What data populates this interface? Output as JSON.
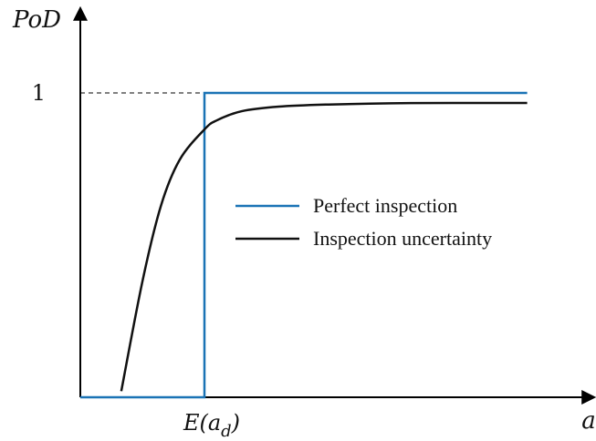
{
  "chart_data": {
    "type": "line",
    "ylabel": "PoD",
    "xlabel": "a",
    "y_tick_labels": [
      "1"
    ],
    "x_tick_labels": [
      "E(a_d)"
    ],
    "x_tick_main": "E(a",
    "x_tick_sub": "d",
    "x_tick_close": ")",
    "x_tick_value": 1,
    "xlim": [
      0,
      4
    ],
    "ylim": [
      0,
      1
    ],
    "grid": false,
    "legend_position": "center-right",
    "series": [
      {
        "name": "Perfect inspection",
        "color": "#1a73b5",
        "x": [
          0,
          1,
          1,
          3.6
        ],
        "y": [
          0,
          0,
          1,
          1
        ]
      },
      {
        "name": "Inspection uncertainty",
        "color": "#111111",
        "x": [
          0.33,
          0.5,
          0.65,
          0.8,
          1.0,
          1.1,
          1.3,
          1.6,
          2.0,
          2.5,
          3.0,
          3.6
        ],
        "y": [
          0.02,
          0.38,
          0.63,
          0.78,
          0.88,
          0.91,
          0.94,
          0.955,
          0.962,
          0.966,
          0.967,
          0.967
        ]
      }
    ]
  }
}
